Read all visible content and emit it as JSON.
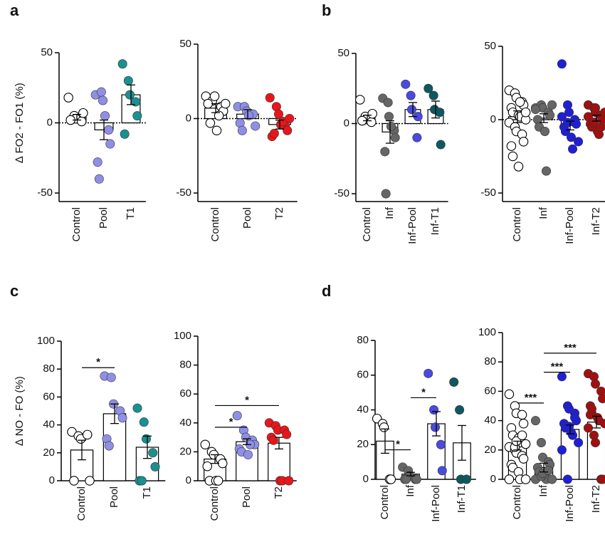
{
  "panel_labels": [
    "a",
    "b",
    "c",
    "d"
  ],
  "chart_data": [
    {
      "type": "dot_bar",
      "ylabel": "∆ FO2 - FO1 (%)",
      "categories": [
        "Control",
        "Pool",
        "T1"
      ],
      "colors": [
        "#ffffff",
        "#8f8fe6",
        "#1a9090"
      ],
      "means": [
        4,
        -5,
        20
      ],
      "errors": [
        2,
        7,
        7
      ],
      "points": [
        [
          18,
          5,
          3,
          1,
          7,
          2
        ],
        [
          20,
          22,
          16,
          -5,
          -15,
          -28,
          -40,
          5
        ],
        [
          42,
          30,
          20,
          15,
          5,
          -8
        ]
      ],
      "ylim": [
        -50,
        50
      ],
      "yticks": [
        -50,
        0,
        50
      ],
      "zero_line": true,
      "significance": []
    },
    {
      "type": "dot_bar",
      "categories": [
        "Control",
        "Pool",
        "T2"
      ],
      "colors": [
        "#ffffff",
        "#8f8fe6",
        "#e8161b"
      ],
      "means": [
        7,
        3,
        -4
      ],
      "errors": [
        3,
        3,
        3
      ],
      "points": [
        [
          15,
          12,
          15,
          8,
          5,
          10,
          -3,
          -8,
          2,
          10
        ],
        [
          8,
          8,
          5,
          3,
          -5,
          -3,
          -8,
          2
        ],
        [
          14,
          8,
          3,
          -5,
          -8,
          -12,
          -10,
          -4,
          -2,
          0
        ]
      ],
      "ylim": [
        -50,
        50
      ],
      "yticks": [
        -50,
        0,
        50
      ],
      "zero_line": true,
      "significance": []
    },
    {
      "type": "dot_bar",
      "categories": [
        "Control",
        "Inf",
        "Inf-Pool",
        "Inf-T1"
      ],
      "colors": [
        "#ffffff",
        "#666666",
        "#4a4ae0",
        "#0f5860"
      ],
      "means": [
        4,
        -6,
        10,
        10
      ],
      "errors": [
        2,
        8,
        5,
        6
      ],
      "points": [
        [
          17,
          5,
          3,
          1,
          7,
          2
        ],
        [
          18,
          15,
          5,
          -5,
          -10,
          -20,
          -50,
          -2
        ],
        [
          28,
          20,
          10,
          -10,
          5
        ],
        [
          25,
          20,
          10,
          8,
          -15
        ]
      ],
      "ylim": [
        -50,
        50
      ],
      "yticks": [
        -50,
        0,
        50
      ],
      "zero_line": true,
      "significance": []
    },
    {
      "type": "dot_bar",
      "categories": [
        "Control",
        "Inf",
        "Inf-Pool",
        "Inf-T2"
      ],
      "colors": [
        "#ffffff",
        "#666666",
        "#1f1fd6",
        "#a01010"
      ],
      "means": [
        2,
        1,
        -4,
        1
      ],
      "errors": [
        4,
        3,
        3,
        2
      ],
      "points": [
        [
          20,
          18,
          15,
          12,
          10,
          8,
          5,
          3,
          2,
          0,
          -2,
          -5,
          -8,
          -10,
          -15,
          -18,
          -25,
          -32,
          12,
          5
        ],
        [
          8,
          10,
          8,
          5,
          3,
          0,
          -5,
          -8,
          -35,
          10,
          7
        ],
        [
          38,
          10,
          5,
          0,
          -3,
          -5,
          -8,
          -12,
          -20,
          -15,
          2,
          -2
        ],
        [
          10,
          8,
          5,
          3,
          0,
          -3,
          -5,
          -8,
          -10,
          5,
          2,
          -2,
          8,
          -5
        ]
      ],
      "ylim": [
        -50,
        50
      ],
      "yticks": [
        -50,
        0,
        50
      ],
      "zero_line": true,
      "significance": []
    },
    {
      "type": "dot_bar",
      "ylabel": "∆ NO - FO (%)",
      "categories": [
        "Control",
        "Pool",
        "T1"
      ],
      "colors": [
        "#ffffff",
        "#8f8fe6",
        "#1a9090"
      ],
      "means": [
        22,
        48,
        24
      ],
      "errors": [
        7,
        7,
        8
      ],
      "points": [
        [
          35,
          32,
          30,
          33,
          0,
          0
        ],
        [
          75,
          74,
          55,
          50,
          45,
          30,
          25
        ],
        [
          52,
          42,
          30,
          20,
          10,
          0,
          0
        ]
      ],
      "ylim": [
        0,
        100
      ],
      "yticks": [
        0,
        20,
        40,
        60,
        80,
        100
      ],
      "zero_line": false,
      "significance": [
        {
          "from": 0,
          "to": 1,
          "y": 81,
          "label": "*"
        }
      ]
    },
    {
      "type": "dot_bar",
      "categories": [
        "Control",
        "Pool",
        "T2"
      ],
      "colors": [
        "#ffffff",
        "#8f8fe6",
        "#e8161b"
      ],
      "means": [
        15,
        27,
        26
      ],
      "errors": [
        3,
        2,
        4
      ],
      "points": [
        [
          25,
          20,
          18,
          15,
          12,
          10,
          0,
          0,
          0
        ],
        [
          45,
          35,
          30,
          28,
          25,
          22,
          20,
          18,
          25
        ],
        [
          40,
          38,
          35,
          35,
          32,
          30,
          28,
          0,
          0,
          0
        ]
      ],
      "ylim": [
        0,
        100
      ],
      "yticks": [
        0,
        20,
        40,
        60,
        80,
        100
      ],
      "zero_line": false,
      "significance": [
        {
          "from": 0,
          "to": 1,
          "y": 37,
          "label": "*"
        },
        {
          "from": 0,
          "to": 2,
          "y": 52,
          "label": "*"
        }
      ]
    },
    {
      "type": "dot_bar",
      "categories": [
        "Control",
        "Inf",
        "Inf-Pool",
        "Inf-T1"
      ],
      "colors": [
        "#ffffff",
        "#666666",
        "#4a4ae0",
        "#0f5860"
      ],
      "means": [
        22,
        3,
        32,
        21
      ],
      "errors": [
        7,
        1,
        7,
        10
      ],
      "points": [
        [
          35,
          32,
          30,
          0,
          0
        ],
        [
          7,
          5,
          2,
          0,
          0,
          0,
          0
        ],
        [
          61,
          40,
          30,
          20,
          5
        ],
        [
          56,
          40,
          0,
          0
        ]
      ],
      "ylim": [
        0,
        80
      ],
      "yticks": [
        0,
        20,
        40,
        60,
        80
      ],
      "zero_line": false,
      "significance": [
        {
          "from": 0,
          "to": 1,
          "y": 17,
          "label": "*"
        },
        {
          "from": 1,
          "to": 2,
          "y": 47,
          "label": "*"
        }
      ]
    },
    {
      "type": "dot_bar",
      "categories": [
        "Control",
        "Inf",
        "Inf-Pool",
        "Inf-T2"
      ],
      "colors": [
        "#ffffff",
        "#666666",
        "#1f1fd6",
        "#a01010"
      ],
      "means": [
        23,
        8,
        34,
        39
      ],
      "errors": [
        3,
        3,
        3,
        4
      ],
      "points": [
        [
          58,
          50,
          45,
          44,
          38,
          35,
          30,
          28,
          25,
          24,
          22,
          20,
          18,
          16,
          14,
          10,
          8,
          5,
          0,
          0,
          0,
          22,
          26,
          30
        ],
        [
          40,
          25,
          15,
          12,
          10,
          8,
          5,
          3,
          0,
          0,
          0,
          2,
          4,
          6
        ],
        [
          70,
          50,
          48,
          45,
          40,
          38,
          35,
          32,
          30,
          25,
          20,
          0,
          36,
          42
        ],
        [
          72,
          70,
          65,
          60,
          55,
          50,
          45,
          42,
          40,
          38,
          35,
          30,
          25,
          0,
          0,
          44,
          48
        ]
      ],
      "ylim": [
        0,
        100
      ],
      "yticks": [
        0,
        20,
        40,
        60,
        80,
        100
      ],
      "zero_line": false,
      "significance": [
        {
          "from": 0,
          "to": 1,
          "y": 52,
          "label": "***"
        },
        {
          "from": 1,
          "to": 2,
          "y": 73,
          "label": "***"
        },
        {
          "from": 1,
          "to": 3,
          "y": 86,
          "label": "***"
        }
      ]
    }
  ]
}
